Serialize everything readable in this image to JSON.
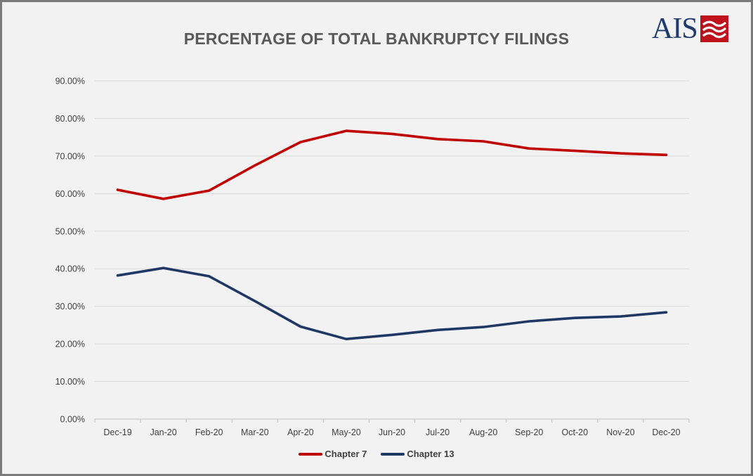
{
  "logo": {
    "text": "AIS",
    "text_color": "#1f3a6e",
    "flag_color": "#c0121c"
  },
  "chart_data": {
    "type": "line",
    "title": "PERCENTAGE OF TOTAL BANKRUPTCY FILINGS",
    "xlabel": "",
    "ylabel": "",
    "categories": [
      "Dec-19",
      "Jan-20",
      "Feb-20",
      "Mar-20",
      "Apr-20",
      "May-20",
      "Jun-20",
      "Jul-20",
      "Aug-20",
      "Sep-20",
      "Oct-20",
      "Nov-20",
      "Dec-20"
    ],
    "ylim": [
      0,
      90
    ],
    "yticks": [
      0,
      10,
      20,
      30,
      40,
      50,
      60,
      70,
      80,
      90
    ],
    "ytick_labels": [
      "0.00%",
      "10.00%",
      "20.00%",
      "30.00%",
      "40.00%",
      "50.00%",
      "60.00%",
      "70.00%",
      "80.00%",
      "90.00%"
    ],
    "grid": true,
    "legend_position": "bottom",
    "series": [
      {
        "name": "Chapter 7",
        "color": "#c00000",
        "values": [
          61.0,
          58.6,
          60.8,
          67.5,
          73.7,
          76.7,
          75.9,
          74.5,
          73.9,
          72.0,
          71.4,
          70.7,
          70.3
        ]
      },
      {
        "name": "Chapter 13",
        "color": "#203864",
        "values": [
          38.2,
          40.2,
          38.0,
          31.4,
          24.6,
          21.3,
          22.4,
          23.7,
          24.5,
          26.0,
          26.9,
          27.3,
          28.4
        ]
      }
    ]
  }
}
